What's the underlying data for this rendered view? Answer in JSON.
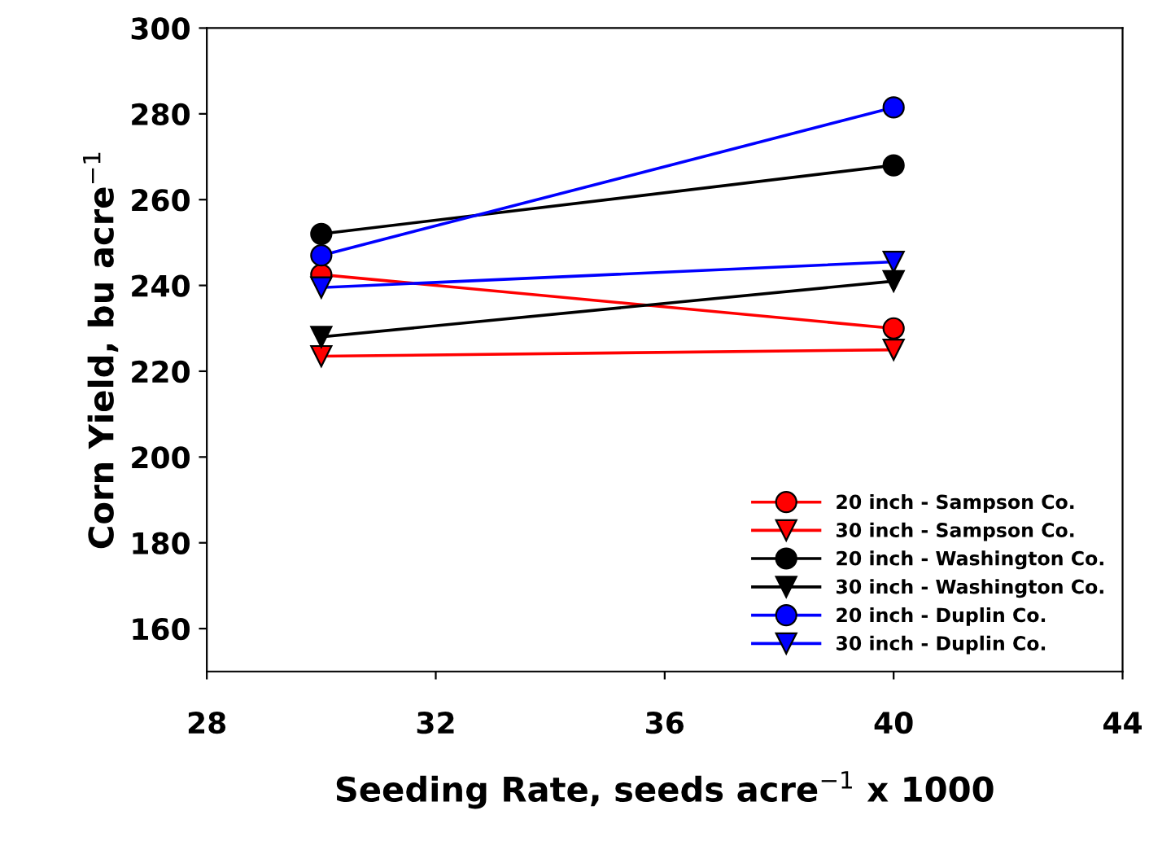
{
  "chart_data": {
    "type": "line",
    "xlabel": "Seeding Rate, seeds acre$^{−1}$ x 1000",
    "ylabel": "Corn Yield, bu acre$^{−1}$",
    "x": [
      30,
      40
    ],
    "xlim": [
      28,
      44
    ],
    "xticks": [
      28,
      32,
      36,
      40,
      44
    ],
    "ylim": [
      150,
      300
    ],
    "yticks": [
      160,
      180,
      200,
      220,
      240,
      260,
      280,
      300
    ],
    "grid": false,
    "legend": "bottom right",
    "series": [
      {
        "name": "20 inch - Sampson Co.",
        "color": "#ff0000",
        "marker": "circle",
        "values": [
          242.5,
          230
        ]
      },
      {
        "name": "30 inch - Sampson Co.",
        "color": "#ff0000",
        "marker": "triangle",
        "values": [
          223.5,
          225
        ]
      },
      {
        "name": "20 inch - Washington Co.",
        "color": "#000000",
        "marker": "circle",
        "values": [
          252,
          268
        ]
      },
      {
        "name": "30 inch - Washington Co.",
        "color": "#000000",
        "marker": "triangle",
        "values": [
          228,
          241
        ]
      },
      {
        "name": "20 inch - Duplin Co.",
        "color": "#0000ff",
        "marker": "circle",
        "values": [
          247,
          281.5
        ]
      },
      {
        "name": "30 inch - Duplin Co.",
        "color": "#0000ff",
        "marker": "triangle",
        "values": [
          239.5,
          245.5
        ]
      }
    ]
  }
}
